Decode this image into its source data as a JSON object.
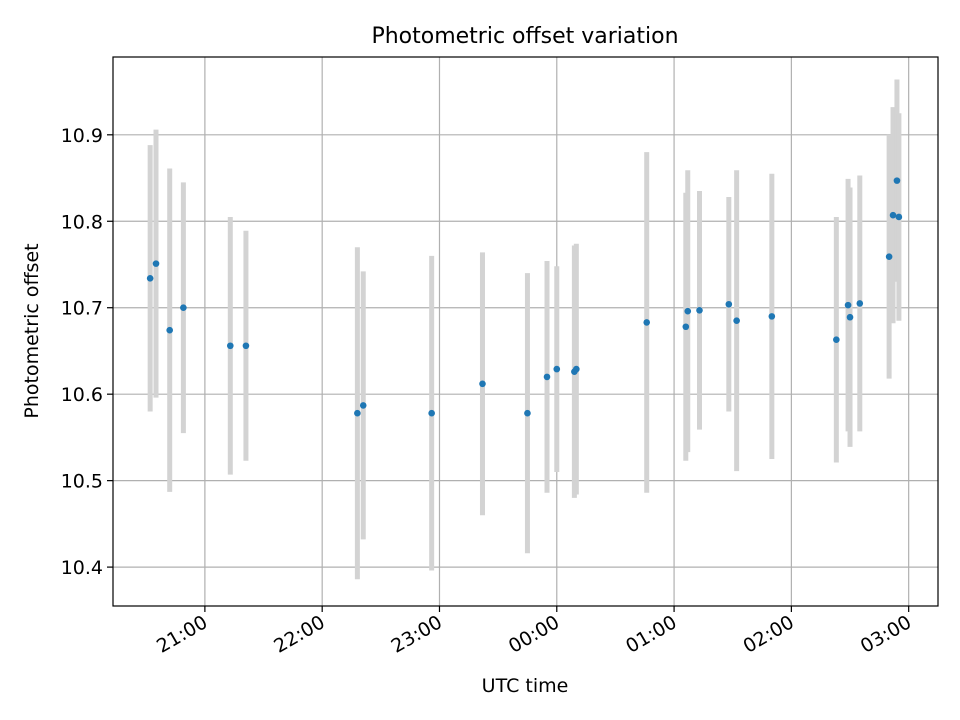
{
  "chart_data": {
    "type": "scatter",
    "title": "Photometric offset variation",
    "xlabel": "UTC time",
    "ylabel": "Photometric offset",
    "x_axis": {
      "kind": "time",
      "range": [
        "20:13",
        "03:15"
      ],
      "ticks": [
        "21:00",
        "22:00",
        "23:00",
        "00:00",
        "01:00",
        "02:00",
        "03:00"
      ]
    },
    "y_axis": {
      "range": [
        10.355,
        10.99
      ],
      "ticks": [
        "10.4",
        "10.5",
        "10.6",
        "10.7",
        "10.8",
        "10.9"
      ]
    },
    "grid": true,
    "colors": {
      "points": "#1f77b4",
      "error_bars": "#d3d3d3",
      "grid": "#b0b0b0"
    },
    "points": [
      {
        "x": "20:32",
        "y": 10.734,
        "err": 0.154
      },
      {
        "x": "20:35",
        "y": 10.751,
        "err": 0.155
      },
      {
        "x": "20:42",
        "y": 10.674,
        "err": 0.187
      },
      {
        "x": "20:49",
        "y": 10.7,
        "err": 0.145
      },
      {
        "x": "21:13",
        "y": 10.656,
        "err": 0.149
      },
      {
        "x": "21:21",
        "y": 10.656,
        "err": 0.133
      },
      {
        "x": "22:18",
        "y": 10.578,
        "err": 0.192
      },
      {
        "x": "22:21",
        "y": 10.587,
        "err": 0.155
      },
      {
        "x": "22:56",
        "y": 10.578,
        "err": 0.182
      },
      {
        "x": "23:22",
        "y": 10.612,
        "err": 0.152
      },
      {
        "x": "23:45",
        "y": 10.578,
        "err": 0.162
      },
      {
        "x": "23:55",
        "y": 10.62,
        "err": 0.134
      },
      {
        "x": "00:00",
        "y": 10.629,
        "err": 0.119
      },
      {
        "x": "00:09",
        "y": 10.626,
        "err": 0.146
      },
      {
        "x": "00:10",
        "y": 10.629,
        "err": 0.145
      },
      {
        "x": "00:46",
        "y": 10.683,
        "err": 0.197
      },
      {
        "x": "01:06",
        "y": 10.678,
        "err": 0.155
      },
      {
        "x": "01:07",
        "y": 10.696,
        "err": 0.163
      },
      {
        "x": "01:13",
        "y": 10.697,
        "err": 0.138
      },
      {
        "x": "01:28",
        "y": 10.704,
        "err": 0.124
      },
      {
        "x": "01:32",
        "y": 10.685,
        "err": 0.174
      },
      {
        "x": "01:50",
        "y": 10.69,
        "err": 0.165
      },
      {
        "x": "02:23",
        "y": 10.663,
        "err": 0.142
      },
      {
        "x": "02:29",
        "y": 10.703,
        "err": 0.146
      },
      {
        "x": "02:30",
        "y": 10.689,
        "err": 0.15
      },
      {
        "x": "02:35",
        "y": 10.705,
        "err": 0.148
      },
      {
        "x": "02:50",
        "y": 10.759,
        "err": 0.141
      },
      {
        "x": "02:52",
        "y": 10.807,
        "err": 0.125
      },
      {
        "x": "02:54",
        "y": 10.847,
        "err": 0.117
      },
      {
        "x": "02:55",
        "y": 10.805,
        "err": 0.12
      }
    ]
  }
}
